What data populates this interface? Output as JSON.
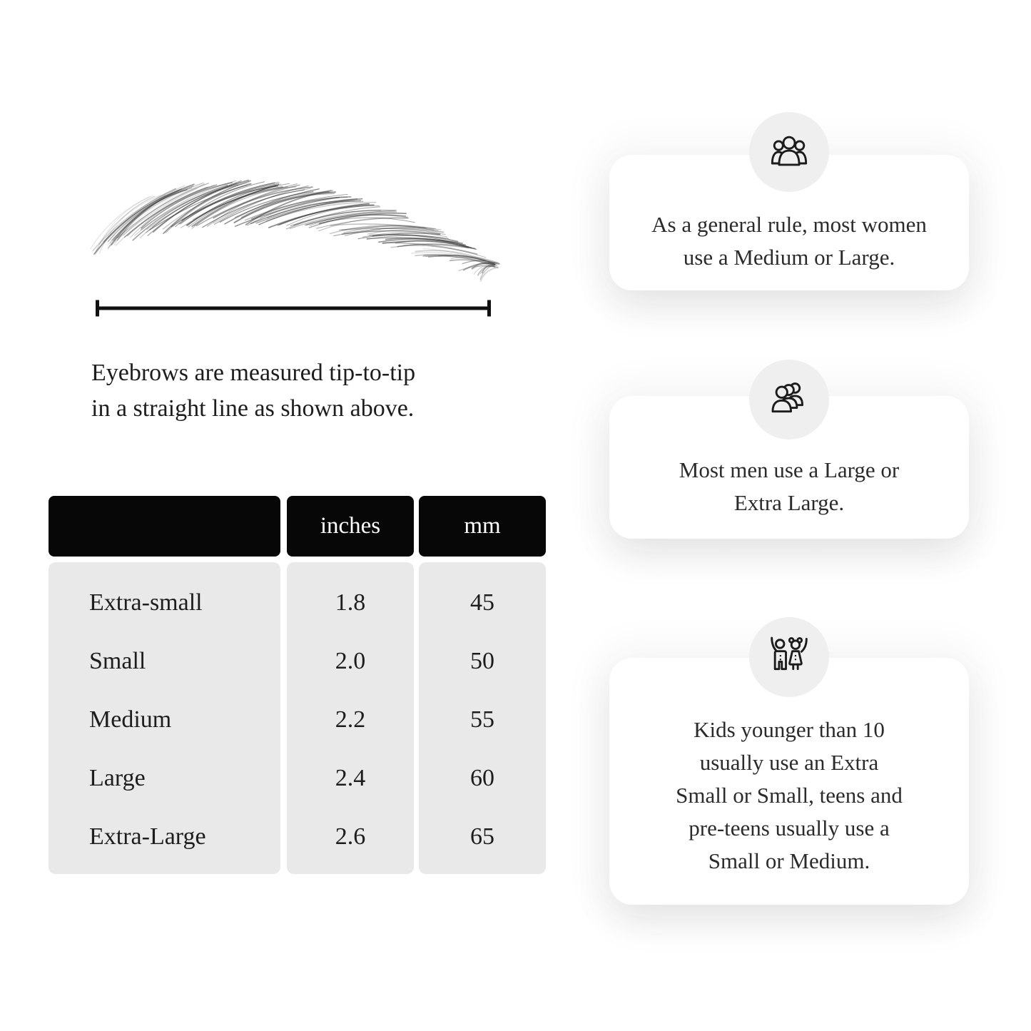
{
  "theme": {
    "page_bg": "#ffffff",
    "table_header_bg": "#070707",
    "table_header_text": "#ffffff",
    "table_body_bg": "#e9e9e9",
    "table_text": "#1d1d1d",
    "card_bg": "#ffffff",
    "card_text": "#2b2b2b",
    "icon_circle_bg": "#f0eff0",
    "icon_stroke": "#1c1c1c",
    "line_color": "#111111",
    "hair_color": "#2f2f2f"
  },
  "measurement": {
    "caption_line1": "Eyebrows are measured tip-to-tip",
    "caption_line2": "in a straight line as shown above."
  },
  "table": {
    "headers": {
      "size": "",
      "inches": "inches",
      "mm": "mm"
    },
    "rows": [
      {
        "label": "Extra-small",
        "inches": "1.8",
        "mm": "45"
      },
      {
        "label": "Small",
        "inches": "2.0",
        "mm": "50"
      },
      {
        "label": "Medium",
        "inches": "2.2",
        "mm": "55"
      },
      {
        "label": "Large",
        "inches": "2.4",
        "mm": "60"
      },
      {
        "label": "Extra-Large",
        "inches": "2.6",
        "mm": "65"
      }
    ]
  },
  "cards": [
    {
      "icon": "women-group-icon",
      "lines": [
        "As a general rule, most women",
        "use a Medium or Large."
      ]
    },
    {
      "icon": "men-group-icon",
      "lines": [
        "Most men use a Large or",
        "Extra Large."
      ]
    },
    {
      "icon": "kids-icon",
      "lines": [
        "Kids younger than 10",
        "usually use an Extra",
        "Small or Small, teens and",
        "pre-teens usually use a",
        "Small or Medium."
      ]
    }
  ]
}
